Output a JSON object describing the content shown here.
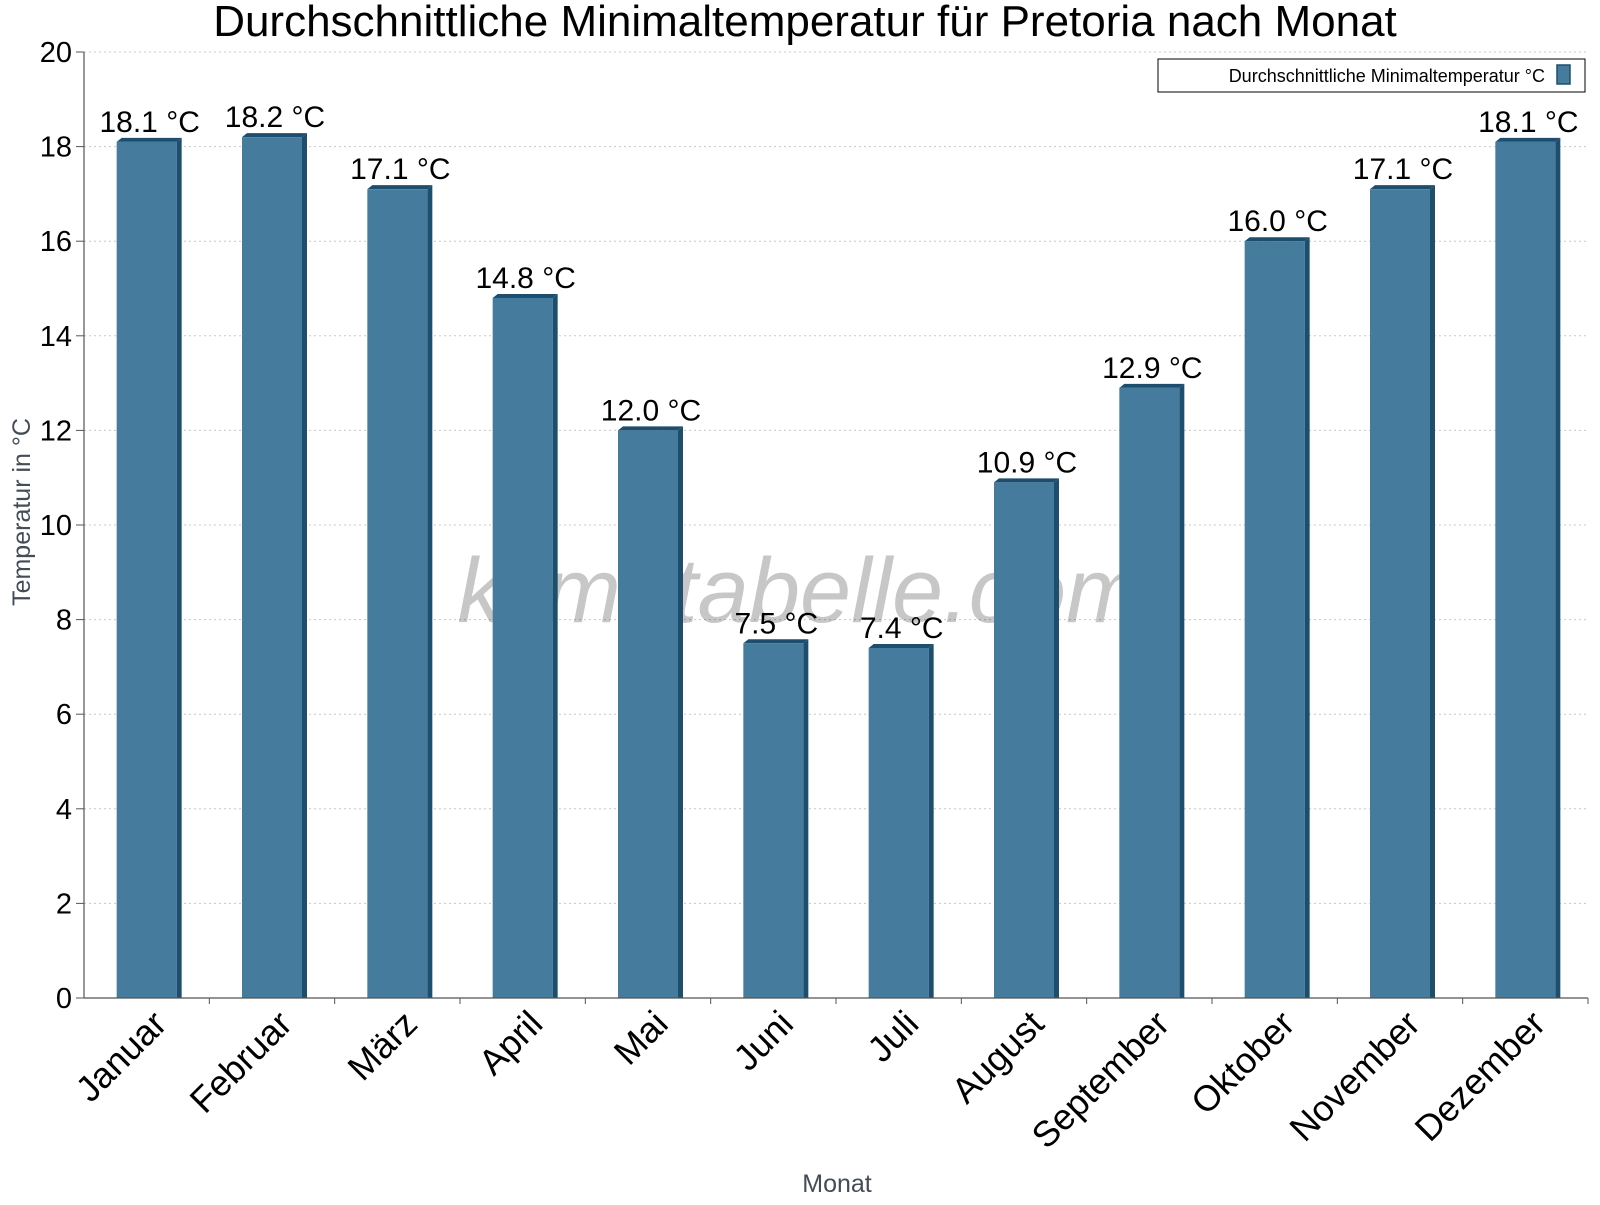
{
  "chart_data": {
    "type": "bar",
    "title": "Durchschnittliche Minimaltemperatur für Pretoria nach Monat",
    "xlabel": "Monat",
    "ylabel": "Temperatur in °C",
    "categories": [
      "Januar",
      "Februar",
      "März",
      "April",
      "Mai",
      "Juni",
      "Juli",
      "August",
      "September",
      "Oktober",
      "November",
      "Dezember"
    ],
    "series": [
      {
        "name": "Durchschnittliche Minimaltemperatur °C",
        "values": [
          18.1,
          18.2,
          17.1,
          14.8,
          12.0,
          7.5,
          7.4,
          10.9,
          12.9,
          16.0,
          17.1,
          18.1
        ]
      }
    ],
    "data_labels": [
      "18.1 °C",
      "18.2 °C",
      "17.1 °C",
      "14.8 °C",
      "12.0 °C",
      "7.5 °C",
      "7.4 °C",
      "10.9 °C",
      "12.9 °C",
      "16.0 °C",
      "17.1 °C",
      "18.1 °C"
    ],
    "ylim": [
      0,
      20
    ],
    "yticks": [
      0,
      2,
      4,
      6,
      8,
      10,
      12,
      14,
      16,
      18,
      20
    ],
    "grid": true,
    "legend_position": "top-right",
    "watermark": "klimatabelle.com",
    "colors": {
      "bar": "#457b9d",
      "bar_shade": "#1d4e6e",
      "grid": "#c8c8c8",
      "axis": "#555555",
      "axis_label": "#444c56"
    }
  }
}
